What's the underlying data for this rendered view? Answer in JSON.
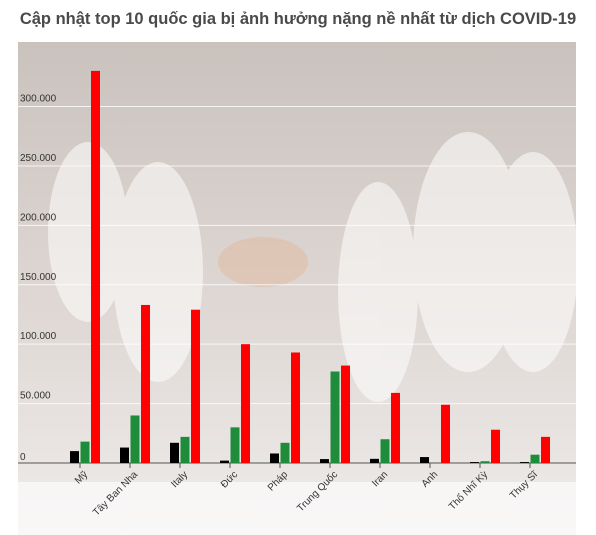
{
  "title": "Cập nhật top 10 quốc gia bị ảnh hưởng nặng nề nhất từ dịch COVID-19",
  "chart_data": {
    "type": "bar",
    "title": "Cập nhật top 10 quốc gia bị ảnh hưởng nặng nề nhất từ dịch COVID-19",
    "categories": [
      "Mỹ",
      "Tây Ban Nha",
      "Italy",
      "Đức",
      "Pháp",
      "Trung Quốc",
      "Iran",
      "Anh",
      "Thổ Nhĩ Kỳ",
      "Thụy Sĩ"
    ],
    "series": [
      {
        "color": "#000000",
        "values": [
          10000,
          13000,
          17000,
          2000,
          8000,
          3300,
          3500,
          5000,
          800,
          800
        ]
      },
      {
        "color": "#1e8c3a",
        "values": [
          18000,
          40000,
          22000,
          30000,
          17000,
          77000,
          20000,
          0,
          1500,
          7000
        ]
      },
      {
        "color": "#ff0000",
        "values": [
          330000,
          133000,
          129000,
          100000,
          93000,
          82000,
          59000,
          49000,
          28000,
          22000
        ]
      }
    ],
    "y_ticks": [
      "0",
      "50.000",
      "100.000",
      "150.000",
      "200.000",
      "250.000",
      "300.000"
    ],
    "ylim": [
      0,
      340000
    ],
    "grid": true,
    "legend": "none"
  }
}
